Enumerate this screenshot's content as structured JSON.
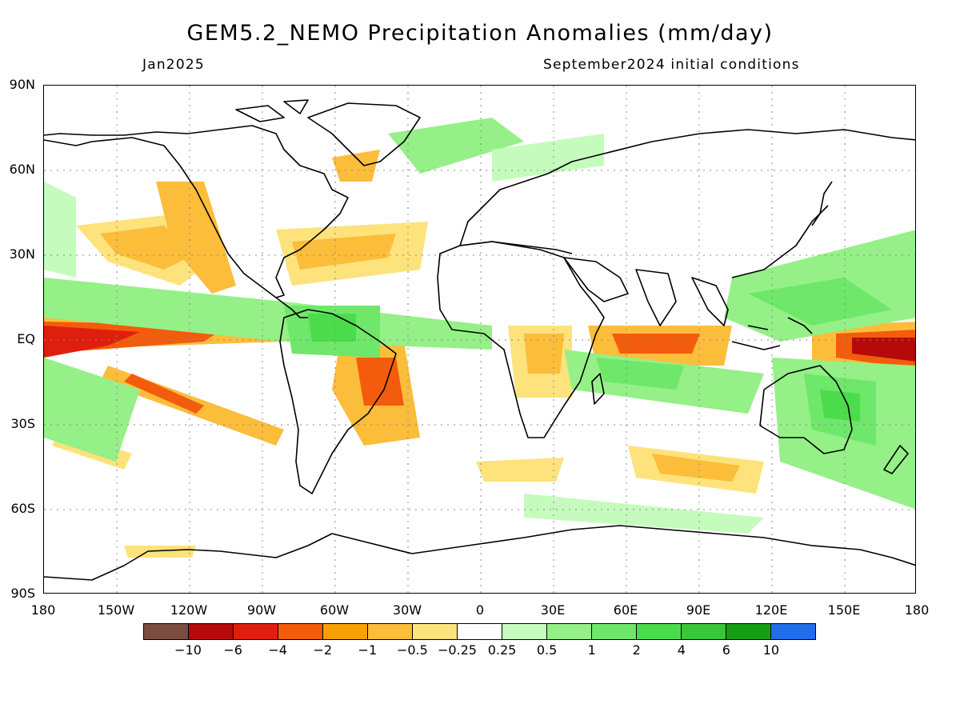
{
  "title": "GEM5.2_NEMO Precipitation Anomalies (mm/day)",
  "period": "Jan2025",
  "init": "September2024 initial conditions",
  "lat_labels": [
    "90N",
    "60N",
    "30N",
    "EQ",
    "30S",
    "60S",
    "90S"
  ],
  "lon_labels": [
    "180",
    "150W",
    "120W",
    "90W",
    "60W",
    "30W",
    "0",
    "30E",
    "60E",
    "90E",
    "120E",
    "150E",
    "180"
  ],
  "colorbar": {
    "colors": [
      "#7b4d3f",
      "#b40a0a",
      "#df1f0d",
      "#f35c0c",
      "#fb9f09",
      "#fbbd3a",
      "#fee27b",
      "#ffffff",
      "#c5fcbd",
      "#95f087",
      "#6ee76a",
      "#4bdc4b",
      "#38c738",
      "#139f13",
      "#1f6fe8"
    ],
    "labels": [
      "-10",
      "-6",
      "-4",
      "-2",
      "-1",
      "-0.5",
      "-0.25",
      "0.25",
      "0.5",
      "1",
      "2",
      "4",
      "6",
      "10"
    ]
  },
  "icons": {
    "map_field": "precipitation-anomaly-field",
    "coastlines": "coastline-icon"
  }
}
